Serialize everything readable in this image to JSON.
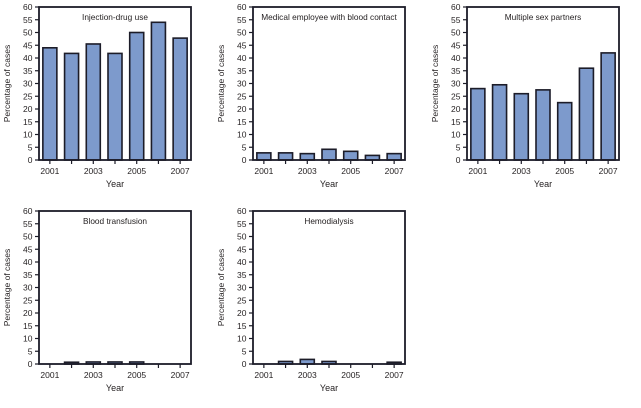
{
  "figure": {
    "background": "#ffffff",
    "layout": "grid-2-rows-3-cols",
    "colors": {
      "bar_fill": "#7D9ACC",
      "bar_stroke": "#1C1C28",
      "frame": "#1C1C28",
      "text": "#231F20"
    },
    "shared_axes": {
      "ylabel": "Percentage of cases",
      "xlabel": "Year",
      "ylim": [
        0,
        60
      ],
      "ytick_step": 5,
      "xtick_labeled_years": [
        "2001",
        "2003",
        "2005",
        "2007"
      ]
    }
  },
  "chart_data": [
    {
      "type": "bar",
      "title": "Injection-drug use",
      "x": [
        2001,
        2002,
        2003,
        2004,
        2005,
        2006,
        2007
      ],
      "values": [
        44,
        41.8,
        45.5,
        41.8,
        50,
        54,
        47.8
      ],
      "xlabel": "Year",
      "ylabel": "Percentage of cases",
      "ylim": [
        0,
        60
      ],
      "ytick_step": 5,
      "xtick_labels": [
        "2001",
        "2003",
        "2005",
        "2007"
      ],
      "grid": false,
      "legend": false
    },
    {
      "type": "bar",
      "title": "Medical employee with blood contact",
      "x": [
        2001,
        2002,
        2003,
        2004,
        2005,
        2006,
        2007
      ],
      "values": [
        2.8,
        2.8,
        2.5,
        4.2,
        3.4,
        1.8,
        2.5
      ],
      "xlabel": "Year",
      "ylabel": "Percentage of cases",
      "ylim": [
        0,
        60
      ],
      "ytick_step": 5,
      "xtick_labels": [
        "2001",
        "2003",
        "2005",
        "2007"
      ],
      "grid": false,
      "legend": false
    },
    {
      "type": "bar",
      "title": "Multiple sex partners",
      "x": [
        2001,
        2002,
        2003,
        2004,
        2005,
        2006,
        2007
      ],
      "values": [
        28,
        29.5,
        26,
        27.5,
        22.5,
        36,
        42
      ],
      "xlabel": "Year",
      "ylabel": "Percentage of cases",
      "ylim": [
        0,
        60
      ],
      "ytick_step": 5,
      "xtick_labels": [
        "2001",
        "2003",
        "2005",
        "2007"
      ],
      "grid": false,
      "legend": false
    },
    {
      "type": "bar",
      "title": "Blood transfusion",
      "x": [
        2001,
        2002,
        2003,
        2004,
        2005,
        2006,
        2007
      ],
      "values": [
        0,
        0.7,
        0.8,
        0.8,
        0.8,
        0,
        0
      ],
      "xlabel": "Year",
      "ylabel": "Percentage of cases",
      "ylim": [
        0,
        60
      ],
      "ytick_step": 5,
      "xtick_labels": [
        "2001",
        "2003",
        "2005",
        "2007"
      ],
      "grid": false,
      "legend": false
    },
    {
      "type": "bar",
      "title": "Hemodialysis",
      "x": [
        2001,
        2002,
        2003,
        2004,
        2005,
        2006,
        2007
      ],
      "values": [
        0,
        1,
        1.8,
        1,
        0,
        0,
        0.7
      ],
      "xlabel": "Year",
      "ylabel": "Percentage of cases",
      "ylim": [
        0,
        60
      ],
      "ytick_step": 5,
      "xtick_labels": [
        "2001",
        "2003",
        "2005",
        "2007"
      ],
      "grid": false,
      "legend": false
    }
  ]
}
